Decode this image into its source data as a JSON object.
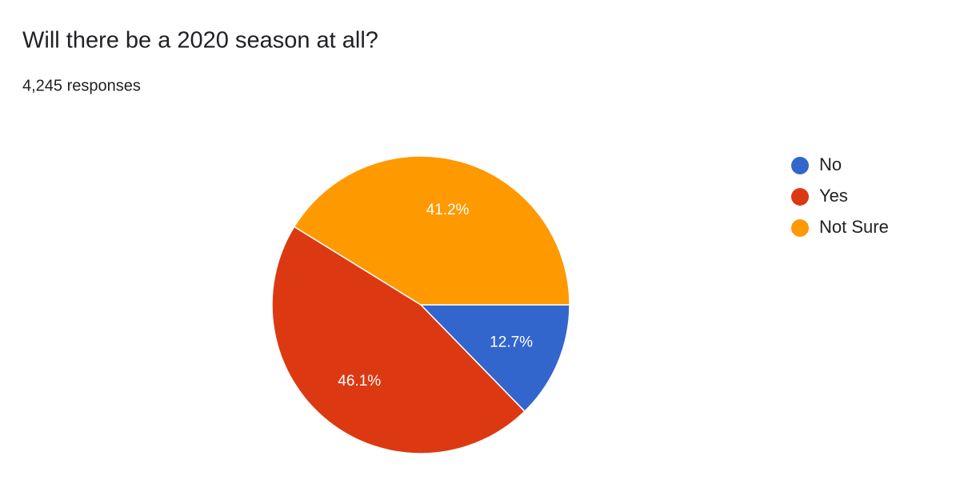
{
  "chart_data": {
    "type": "pie",
    "title": "Will there be a 2020 season at all?",
    "subtitle": "4,245 responses",
    "categories": [
      "No",
      "Yes",
      "Not Sure"
    ],
    "values": [
      12.7,
      46.1,
      41.2
    ],
    "value_labels": [
      "12.7%",
      "46.1%",
      "41.2%"
    ],
    "colors": [
      "#3366cc",
      "#dc3912",
      "#ff9900"
    ],
    "legend": "right"
  }
}
